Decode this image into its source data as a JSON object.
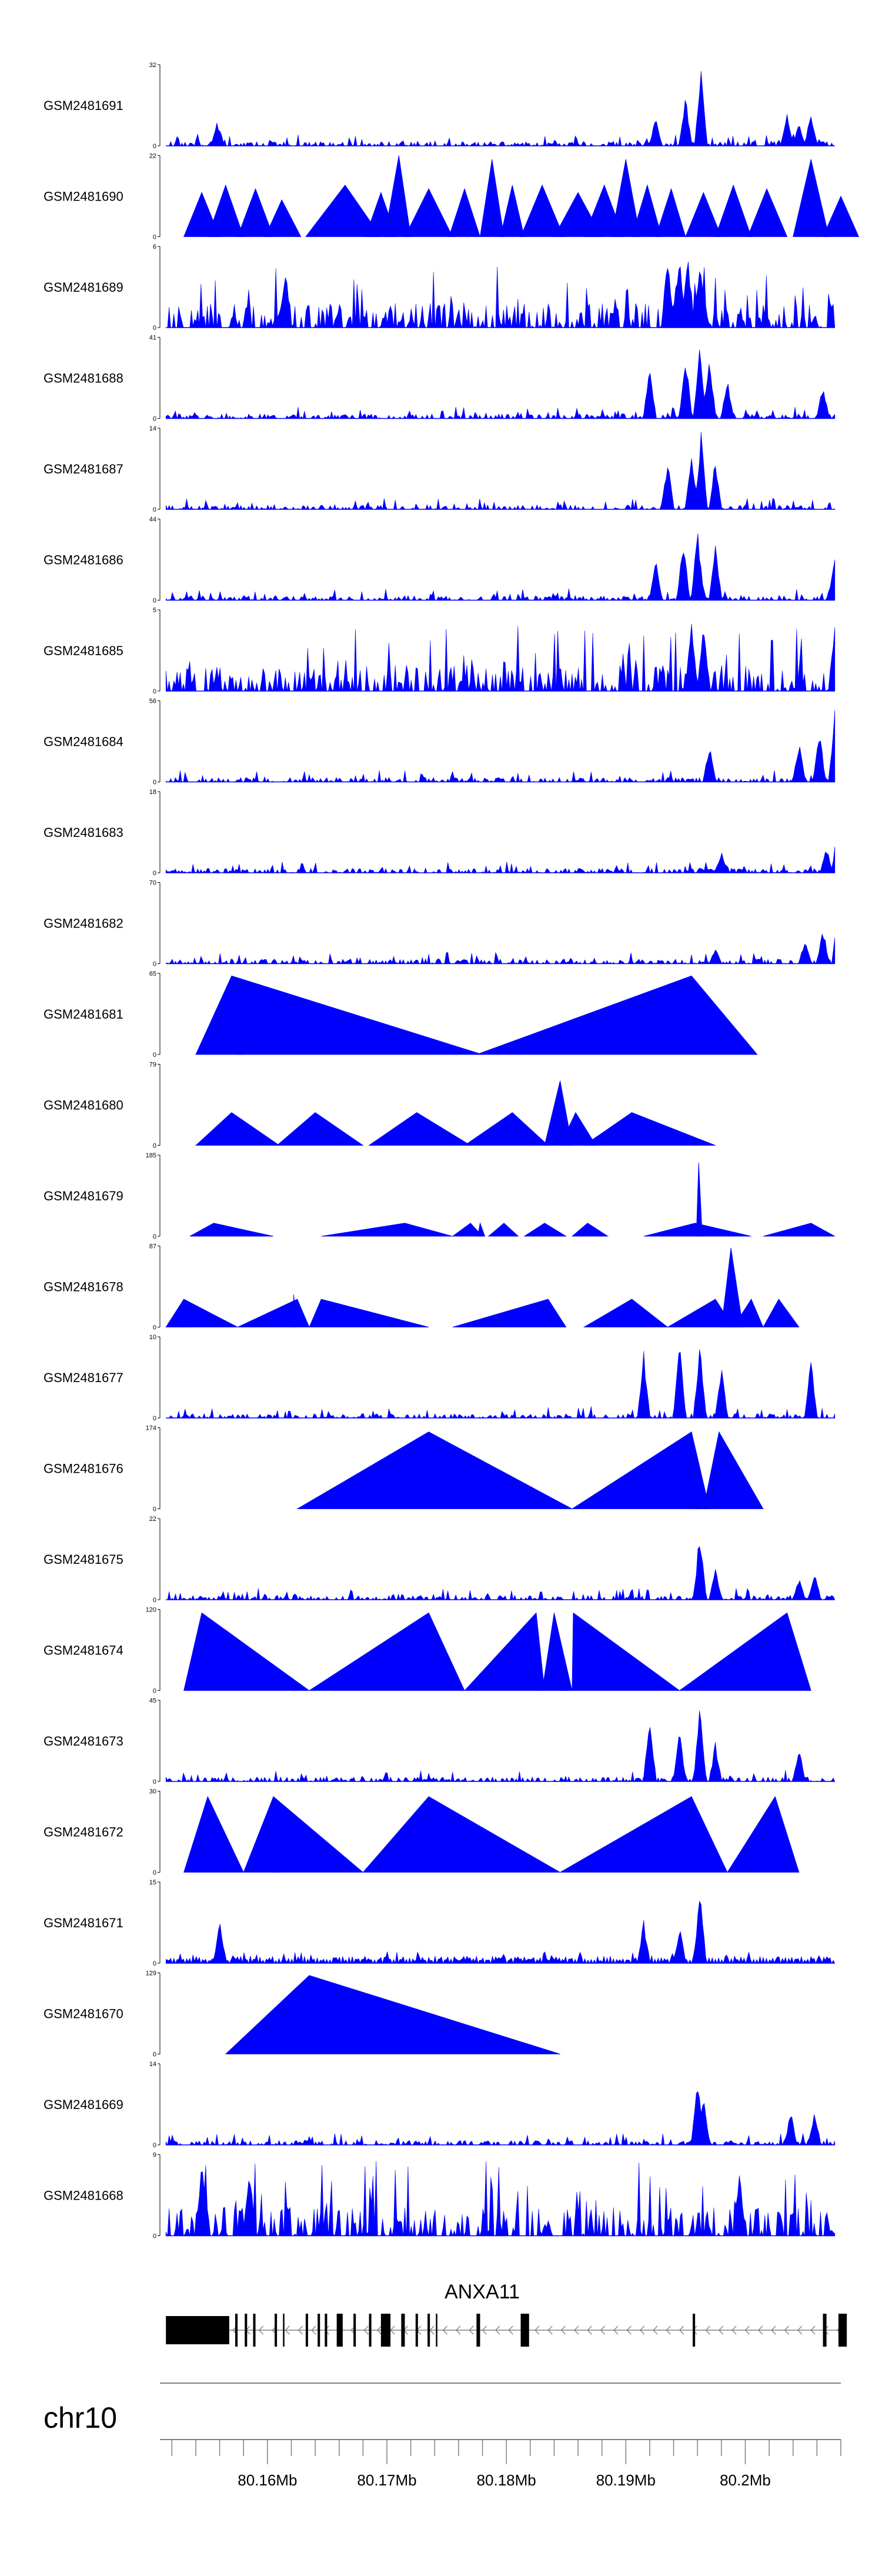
{
  "chart_data": {
    "type": "area",
    "title": "",
    "fill_color": "#0000FF",
    "tracks": [
      {
        "name": "GSM2481691",
        "ymax": "32",
        "ymin": "0",
        "kind": "dense",
        "seed": 11,
        "peaks": [
          [
            80.1558,
            10
          ],
          [
            80.1925,
            12
          ],
          [
            80.195,
            20
          ],
          [
            80.1963,
            31
          ],
          [
            80.2035,
            13
          ],
          [
            80.2045,
            10
          ],
          [
            80.2055,
            14
          ]
        ]
      },
      {
        "name": "GSM2481690",
        "ymax": "22",
        "ymin": "0",
        "kind": "sparse",
        "seed": 12,
        "triangles": [
          [
            80.153,
            80.1545,
            80.156,
            12
          ],
          [
            80.155,
            80.1565,
            80.158,
            14
          ],
          [
            80.1575,
            80.159,
            80.1605,
            13
          ],
          [
            80.1598,
            80.1612,
            80.1628,
            10
          ],
          [
            80.1632,
            80.1665,
            80.1695,
            14
          ],
          [
            80.1682,
            80.1695,
            80.1708,
            12
          ],
          [
            80.1698,
            80.171,
            80.172,
            22
          ],
          [
            80.1715,
            80.1735,
            80.1755,
            13
          ],
          [
            80.1752,
            80.1765,
            80.1778,
            13
          ],
          [
            80.1778,
            80.1788,
            80.1798,
            21
          ],
          [
            80.1795,
            80.1805,
            80.1815,
            14
          ],
          [
            80.1812,
            80.183,
            80.1848,
            14
          ],
          [
            80.184,
            80.186,
            80.188,
            12
          ],
          [
            80.1865,
            80.1882,
            80.1898,
            14
          ],
          [
            80.1888,
            80.19,
            80.1912,
            21
          ],
          [
            80.1905,
            80.1918,
            80.193,
            14
          ],
          [
            80.1925,
            80.1938,
            80.195,
            13
          ],
          [
            80.195,
            80.1965,
            80.198,
            12
          ],
          [
            80.1975,
            80.199,
            80.2005,
            14
          ],
          [
            80.2002,
            80.2018,
            80.2035,
            13
          ],
          [
            80.204,
            80.2055,
            80.207,
            21
          ],
          [
            80.2065,
            80.208,
            80.2095,
            11
          ]
        ]
      },
      {
        "name": "GSM2481689",
        "ymax": "6",
        "ymin": "0",
        "kind": "dense",
        "seed": 13,
        "base": 1.8,
        "peaks": [
          [
            80.1615,
            4.5
          ],
          [
            80.1935,
            5.6
          ],
          [
            80.1945,
            5.9
          ],
          [
            80.1952,
            5.7
          ],
          [
            80.1962,
            5.4
          ],
          [
            80.2085,
            5.9
          ]
        ]
      },
      {
        "name": "GSM2481688",
        "ymax": "41",
        "ymin": "0",
        "kind": "dense",
        "seed": 14,
        "peaks": [
          [
            80.192,
            28
          ],
          [
            80.195,
            34
          ],
          [
            80.1962,
            40
          ],
          [
            80.197,
            33
          ],
          [
            80.1985,
            20
          ],
          [
            80.2065,
            18
          ],
          [
            80.208,
            24
          ]
        ]
      },
      {
        "name": "GSM2481687",
        "ymax": "14",
        "ymin": "0",
        "kind": "dense",
        "seed": 15,
        "peaks": [
          [
            80.1935,
            9
          ],
          [
            80.1955,
            11
          ],
          [
            80.1963,
            13.5
          ],
          [
            80.1975,
            9
          ],
          [
            80.2085,
            9
          ]
        ]
      },
      {
        "name": "GSM2481686",
        "ymax": "44",
        "ymin": "0",
        "kind": "dense",
        "seed": 16,
        "peaks": [
          [
            80.1925,
            26
          ],
          [
            80.1948,
            36
          ],
          [
            80.196,
            40
          ],
          [
            80.1975,
            30
          ],
          [
            80.2075,
            26
          ],
          [
            80.2085,
            22
          ]
        ]
      },
      {
        "name": "GSM2481685",
        "ymax": "5",
        "ymin": "0",
        "kind": "dense",
        "seed": 17,
        "base": 1.6,
        "peaks": [
          [
            80.1955,
            4.2
          ],
          [
            80.1965,
            4.4
          ],
          [
            80.2075,
            4.5
          ],
          [
            80.2085,
            4.8
          ]
        ]
      },
      {
        "name": "GSM2481684",
        "ymax": "56",
        "ymin": "0",
        "kind": "dense",
        "seed": 18,
        "peaks": [
          [
            80.197,
            26
          ],
          [
            80.2045,
            28
          ],
          [
            80.2062,
            38
          ],
          [
            80.2075,
            50
          ],
          [
            80.2085,
            42
          ]
        ]
      },
      {
        "name": "GSM2481683",
        "ymax": "18",
        "ymin": "0",
        "kind": "dense",
        "seed": 19,
        "peaks": [
          [
            80.198,
            5
          ],
          [
            80.2068,
            6
          ],
          [
            80.2078,
            13
          ],
          [
            80.2085,
            17
          ]
        ]
      },
      {
        "name": "GSM2481682",
        "ymax": "70",
        "ymin": "0",
        "kind": "dense",
        "seed": 20,
        "peaks": [
          [
            80.1975,
            14
          ],
          [
            80.205,
            22
          ],
          [
            80.2065,
            32
          ],
          [
            80.2078,
            64
          ],
          [
            80.2088,
            44
          ]
        ]
      },
      {
        "name": "GSM2481681",
        "ymax": "65",
        "ymin": "0",
        "kind": "sparse",
        "seed": 21,
        "triangles": [
          [
            80.154,
            80.157,
            80.178,
            63
          ],
          [
            80.1575,
            80.1578,
            80.158,
            20
          ],
          [
            80.1775,
            80.1955,
            80.201,
            63
          ]
        ]
      },
      {
        "name": "GSM2481680",
        "ymax": "79",
        "ymin": "0",
        "kind": "sparse",
        "seed": 22,
        "triangles": [
          [
            80.154,
            80.157,
            80.161,
            32
          ],
          [
            80.1608,
            80.164,
            80.168,
            32
          ],
          [
            80.1685,
            80.1725,
            80.177,
            32
          ],
          [
            80.1765,
            80.1805,
            80.1835,
            32
          ],
          [
            80.1832,
            80.1845,
            80.1855,
            63
          ],
          [
            80.1845,
            80.1858,
            80.1875,
            32
          ],
          [
            80.1865,
            80.1905,
            80.1975,
            32
          ]
        ]
      },
      {
        "name": "GSM2481679",
        "ymax": "185",
        "ymin": "0",
        "kind": "sparse",
        "seed": 23,
        "triangles": [
          [
            80.1535,
            80.1555,
            80.1605,
            30
          ],
          [
            80.1645,
            80.1715,
            80.1755,
            30
          ],
          [
            80.1755,
            80.177,
            80.178,
            30
          ],
          [
            80.1776,
            80.1778,
            80.1782,
            30
          ],
          [
            80.1785,
            80.1798,
            80.181,
            30
          ],
          [
            80.1815,
            80.1832,
            80.185,
            30
          ],
          [
            80.1855,
            80.1868,
            80.1885,
            30
          ],
          [
            80.1915,
            80.1958,
            80.2005,
            30
          ],
          [
            80.1959,
            80.1961,
            80.1964,
            168
          ],
          [
            80.2015,
            80.2055,
            80.2075,
            30
          ]
        ]
      },
      {
        "name": "GSM2481678",
        "ymax": "87",
        "ymin": "0",
        "kind": "sparse",
        "seed": 24,
        "triangles": [
          [
            80.1515,
            80.153,
            80.1575,
            30
          ],
          [
            80.1528,
            80.153,
            80.1532,
            30
          ],
          [
            80.1575,
            80.1625,
            80.1635,
            30
          ],
          [
            80.1621,
            80.1622,
            80.1624,
            35
          ],
          [
            80.1635,
            80.1645,
            80.1735,
            30
          ],
          [
            80.1755,
            80.1835,
            80.185,
            30
          ],
          [
            80.1865,
            80.1905,
            80.1935,
            30
          ],
          [
            80.1935,
            80.1975,
            80.199,
            30
          ],
          [
            80.198,
            80.1988,
            80.1998,
            85
          ],
          [
            80.199,
            80.2005,
            80.2015,
            30
          ],
          [
            80.2015,
            80.2028,
            80.2045,
            30
          ]
        ]
      },
      {
        "name": "GSM2481677",
        "ymax": "10",
        "ymin": "0",
        "kind": "dense",
        "seed": 25,
        "peaks": [
          [
            80.1915,
            8.5
          ],
          [
            80.1945,
            9.5
          ],
          [
            80.1962,
            9.8
          ],
          [
            80.198,
            6.5
          ],
          [
            80.2055,
            8
          ]
        ]
      },
      {
        "name": "GSM2481676",
        "ymax": "174",
        "ymin": "0",
        "kind": "sparse",
        "seed": 25,
        "triangles": [
          [
            80.1625,
            80.1735,
            80.1855,
            165
          ],
          [
            80.1855,
            80.1955,
            80.197,
            165
          ],
          [
            80.1958,
            80.196,
            80.1962,
            50
          ],
          [
            80.1965,
            80.1978,
            80.2015,
            165
          ]
        ]
      },
      {
        "name": "GSM2481675",
        "ymax": "22",
        "ymin": "0",
        "kind": "dense",
        "seed": 27,
        "peaks": [
          [
            80.1962,
            20
          ],
          [
            80.1975,
            9
          ],
          [
            80.2058,
            8
          ],
          [
            80.2045,
            6
          ]
        ]
      },
      {
        "name": "GSM2481674",
        "ymax": "120",
        "ymin": "0",
        "kind": "sparse",
        "seed": 28,
        "triangles": [
          [
            80.153,
            80.1545,
            80.1635,
            115
          ],
          [
            80.1635,
            80.1735,
            80.1765,
            115
          ],
          [
            80.1765,
            80.1825,
            80.1832,
            115
          ],
          [
            80.183,
            80.184,
            80.1855,
            115
          ],
          [
            80.1845,
            80.1848,
            80.1852,
            40
          ],
          [
            80.1855,
            80.1856,
            80.1945,
            115
          ],
          [
            80.1945,
            80.2035,
            80.2055,
            115
          ]
        ]
      },
      {
        "name": "GSM2481673",
        "ymax": "45",
        "ymin": "0",
        "kind": "dense",
        "seed": 29,
        "peaks": [
          [
            80.192,
            38
          ],
          [
            80.1945,
            30
          ],
          [
            80.1962,
            43
          ],
          [
            80.1975,
            22
          ],
          [
            80.2045,
            20
          ]
        ]
      },
      {
        "name": "GSM2481672",
        "ymax": "30",
        "ymin": "0",
        "kind": "sparse",
        "seed": 30,
        "triangles": [
          [
            80.153,
            80.155,
            80.158,
            28
          ],
          [
            80.158,
            80.1605,
            80.168,
            28
          ],
          [
            80.1605,
            80.1607,
            80.161,
            16
          ],
          [
            80.168,
            80.1735,
            80.1845,
            28
          ],
          [
            80.1845,
            80.1955,
            80.1985,
            28
          ],
          [
            80.1985,
            80.2025,
            80.2045,
            28
          ]
        ]
      },
      {
        "name": "GSM2481671",
        "ymax": "15",
        "ymin": "0",
        "kind": "dense",
        "seed": 31,
        "mode": "triangles",
        "peaks": [
          [
            80.1962,
            14
          ],
          [
            80.1915,
            8
          ],
          [
            80.1945,
            7
          ],
          [
            80.156,
            8
          ]
        ]
      },
      {
        "name": "GSM2481670",
        "ymax": "129",
        "ymin": "0",
        "kind": "sparse",
        "seed": 32,
        "triangles": [
          [
            80.1565,
            80.1635,
            80.1845,
            125
          ]
        ]
      },
      {
        "name": "GSM2481669",
        "ymax": "14",
        "ymin": "0",
        "kind": "dense",
        "seed": 33,
        "peaks": [
          [
            80.196,
            12
          ],
          [
            80.1965,
            9
          ],
          [
            80.2038,
            6
          ],
          [
            80.2058,
            6
          ]
        ]
      },
      {
        "name": "GSM2481668",
        "ymax": "9",
        "ymin": "0",
        "kind": "dense",
        "seed": 34,
        "base": 3.2,
        "peaks": [
          [
            80.1545,
            8.2
          ],
          [
            80.1585,
            8.5
          ],
          [
            80.1995,
            7.8
          ]
        ]
      }
    ],
    "gene": {
      "name": "ANXA11",
      "strand": "-",
      "start": 80.1515,
      "end": 80.2085,
      "exons": [
        [
          80.1515,
          80.1568
        ],
        [
          80.1573,
          80.1575
        ],
        [
          80.1581,
          80.1583
        ],
        [
          80.1588,
          80.159
        ],
        [
          80.1606,
          80.1608
        ],
        [
          80.1613,
          80.1614
        ],
        [
          80.1632,
          80.1634
        ],
        [
          80.1642,
          80.1644
        ],
        [
          80.1648,
          80.165
        ],
        [
          80.1658,
          80.1663
        ],
        [
          80.1672,
          80.1674
        ],
        [
          80.1685,
          80.1687
        ],
        [
          80.1695,
          80.1703
        ],
        [
          80.1712,
          80.1715
        ],
        [
          80.1724,
          80.1726
        ],
        [
          80.1734,
          80.1736
        ],
        [
          80.1741,
          80.1742
        ],
        [
          80.1775,
          80.1778
        ],
        [
          80.1812,
          80.1819
        ],
        [
          80.1956,
          80.1958
        ],
        [
          80.2065,
          80.2068
        ],
        [
          80.2078,
          80.2085
        ]
      ]
    },
    "axis": {
      "chromosome": "chr10",
      "xlim": [
        80.151,
        80.208
      ],
      "major_ticks": [
        80.16,
        80.17,
        80.18,
        80.19,
        80.2
      ],
      "major_tick_labels": [
        "80.16Mb",
        "80.17Mb",
        "80.18Mb",
        "80.19Mb",
        "80.2Mb"
      ],
      "minor_tick_step": 0.002
    }
  }
}
